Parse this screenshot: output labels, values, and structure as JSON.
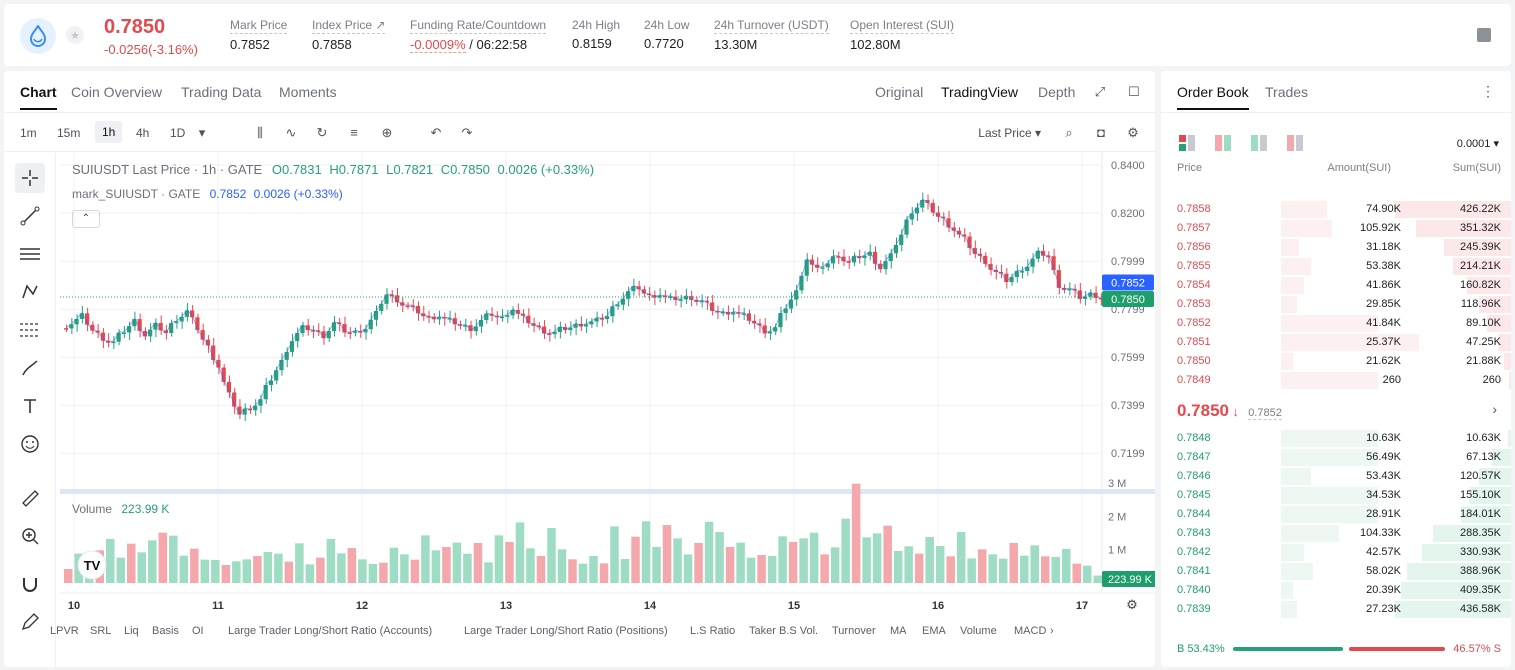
{
  "header": {
    "last_price": "0.7850",
    "change": "-0.0256(-3.16%)",
    "stats": [
      {
        "label": "Mark Price",
        "value": "0.7852"
      },
      {
        "label": "Index Price ↗",
        "value": "0.7858"
      },
      {
        "label": "Funding Rate/Countdown",
        "value": "-0.0009%",
        "value2": "/ 06:22:58"
      },
      {
        "label": "24h High",
        "value": "0.8159"
      },
      {
        "label": "24h Low",
        "value": "0.7720"
      },
      {
        "label": "24h Turnover (USDT)",
        "value": "13.30M"
      },
      {
        "label": "Open Interest (SUI)",
        "value": "102.80M"
      }
    ]
  },
  "chart_tabs": [
    "Chart",
    "Coin Overview",
    "Trading Data",
    "Moments"
  ],
  "view_tabs": [
    "Original",
    "TradingView",
    "Depth"
  ],
  "intervals": [
    "1m",
    "15m",
    "1h",
    "4h",
    "1D"
  ],
  "price_type": "Last Price ▾",
  "legend": {
    "symbol": "SUIUSDT Last Price · 1h · GATE",
    "o": "O0.7831",
    "h": "H0.7871",
    "l": "L0.7821",
    "c": "C0.7850",
    "chg": "0.0026 (+0.33%)",
    "mark_name": "mark_SUIUSDT · GATE",
    "mark_val": "0.7852",
    "mark_chg": "0.0026 (+0.33%)"
  },
  "volume_label": "Volume",
  "volume_value": "223.99 K",
  "colors": {
    "up": "#26a17b",
    "down": "#e5484d",
    "mark": "#2962ff"
  },
  "chart_data": {
    "type": "candlestick",
    "y_ticks": [
      "0.8400",
      "0.8200",
      "0.7999",
      "0.7799",
      "0.7599",
      "0.7399",
      "0.7199"
    ],
    "y_tick_values": [
      0.84,
      0.82,
      0.7999,
      0.7799,
      0.7599,
      0.7399,
      0.7199
    ],
    "x_ticks": [
      "10",
      "11",
      "12",
      "13",
      "14",
      "15",
      "16",
      "17"
    ],
    "volume_ticks": [
      "3 M",
      "2 M",
      "1 M"
    ],
    "price_tags": {
      "mark": "0.7852",
      "last": "0.7850",
      "volume": "223.99 K"
    },
    "close_path": [
      0.774,
      0.777,
      0.771,
      0.768,
      0.766,
      0.771,
      0.775,
      0.769,
      0.773,
      0.77,
      0.776,
      0.779,
      0.772,
      0.764,
      0.756,
      0.744,
      0.736,
      0.739,
      0.742,
      0.751,
      0.758,
      0.767,
      0.772,
      0.771,
      0.769,
      0.774,
      0.771,
      0.77,
      0.772,
      0.778,
      0.786,
      0.784,
      0.781,
      0.779,
      0.776,
      0.777,
      0.775,
      0.773,
      0.772,
      0.775,
      0.778,
      0.776,
      0.78,
      0.776,
      0.773,
      0.771,
      0.77,
      0.772,
      0.773,
      0.774,
      0.775,
      0.777,
      0.783,
      0.787,
      0.789,
      0.785,
      0.786,
      0.784,
      0.784,
      0.785,
      0.783,
      0.78,
      0.778,
      0.779,
      0.777,
      0.774,
      0.771,
      0.772,
      0.781,
      0.787,
      0.801,
      0.796,
      0.799,
      0.803,
      0.799,
      0.802,
      0.803,
      0.797,
      0.802,
      0.811,
      0.821,
      0.825,
      0.821,
      0.817,
      0.813,
      0.809,
      0.803,
      0.8,
      0.795,
      0.792,
      0.795,
      0.798,
      0.803,
      0.802,
      0.79,
      0.788,
      0.785,
      0.786,
      0.785
    ],
    "volume_k": [
      420,
      880,
      610,
      980,
      1320,
      760,
      1180,
      920,
      1280,
      1510,
      1420,
      820,
      1030,
      700,
      690,
      540,
      650,
      710,
      810,
      930,
      880,
      640,
      1190,
      560,
      760,
      1320,
      890,
      1050,
      710,
      570,
      610,
      1060,
      860,
      700,
      1430,
      980,
      1080,
      1210,
      880,
      1200,
      620,
      1430,
      1230,
      1820,
      1040,
      810,
      1650,
      1010,
      710,
      580,
      810,
      590,
      1700,
      720,
      1390,
      1850,
      1080,
      1740,
      1340,
      860,
      1200,
      1840,
      1530,
      1080,
      1210,
      760,
      840,
      810,
      1400,
      1230,
      1340,
      1510,
      860,
      1070,
      1930,
      2980,
      1370,
      1490,
      1720,
      960,
      1100,
      880,
      1380,
      1110,
      800,
      1530,
      740,
      1010,
      860,
      730,
      1200,
      820,
      1130,
      800,
      780,
      1020,
      580,
      520,
      224
    ]
  },
  "left_tools": [
    "crosshair-icon",
    "trendline-icon",
    "hlines-icon",
    "pattern-icon",
    "fib-icon",
    "brush-icon",
    "text-icon",
    "emoji-icon",
    "ruler-icon",
    "zoom-icon",
    "magnet-icon",
    "pencil-icon"
  ],
  "bottom_items": [
    "LPVR",
    "SRL",
    "Liq",
    "Basis",
    "OI",
    "Large Trader Long/Short Ratio (Accounts)",
    "Large Trader Long/Short Ratio (Positions)",
    "L.S Ratio",
    "Taker B.S Vol.",
    "Turnover",
    "MA",
    "EMA",
    "Volume",
    "MACD"
  ],
  "orderbook": {
    "tabs": [
      "Order Book",
      "Trades"
    ],
    "precision": "0.0001",
    "headers": [
      "Price",
      "Amount(SUI)",
      "Sum(SUI)"
    ],
    "asks": [
      {
        "price": "0.7858",
        "amount": "74.90K",
        "sum": "426.22K",
        "depth": 1.0,
        "amt": 0.2
      },
      {
        "price": "0.7857",
        "amount": "105.92K",
        "sum": "351.32K",
        "depth": 0.82,
        "amt": 0.22
      },
      {
        "price": "0.7856",
        "amount": "31.18K",
        "sum": "245.39K",
        "depth": 0.58,
        "amt": 0.08
      },
      {
        "price": "0.7855",
        "amount": "53.38K",
        "sum": "214.21K",
        "depth": 0.5,
        "amt": 0.13
      },
      {
        "price": "0.7854",
        "amount": "41.86K",
        "sum": "160.82K",
        "depth": 0.38,
        "amt": 0.1
      },
      {
        "price": "0.7853",
        "amount": "29.85K",
        "sum": "118.96K",
        "depth": 0.28,
        "amt": 0.07
      },
      {
        "price": "0.7852",
        "amount": "41.84K",
        "sum": "89.10K",
        "depth": 0.21,
        "amt": 0.42
      },
      {
        "price": "0.7851",
        "amount": "25.37K",
        "sum": "47.25K",
        "depth": 0.11,
        "amt": 0.6
      },
      {
        "price": "0.7850",
        "amount": "21.62K",
        "sum": "21.88K",
        "depth": 0.06,
        "amt": 0.05
      },
      {
        "price": "0.7849",
        "amount": "260",
        "sum": "260",
        "depth": 0.02,
        "amt": 0.42
      }
    ],
    "mid_price": "0.7850",
    "mid_mark": "0.7852",
    "bids": [
      {
        "price": "0.7848",
        "amount": "10.63K",
        "sum": "10.63K",
        "depth": 0.03,
        "amt": 0.42
      },
      {
        "price": "0.7847",
        "amount": "56.49K",
        "sum": "67.13K",
        "depth": 0.16,
        "amt": 0.42
      },
      {
        "price": "0.7846",
        "amount": "53.43K",
        "sum": "120.57K",
        "depth": 0.28,
        "amt": 0.13
      },
      {
        "price": "0.7845",
        "amount": "34.53K",
        "sum": "155.10K",
        "depth": 0.36,
        "amt": 0.42
      },
      {
        "price": "0.7844",
        "amount": "28.91K",
        "sum": "184.01K",
        "depth": 0.43,
        "amt": 0.42
      },
      {
        "price": "0.7843",
        "amount": "104.33K",
        "sum": "288.35K",
        "depth": 0.67,
        "amt": 0.25
      },
      {
        "price": "0.7842",
        "amount": "42.57K",
        "sum": "330.93K",
        "depth": 0.77,
        "amt": 0.1
      },
      {
        "price": "0.7841",
        "amount": "58.02K",
        "sum": "388.96K",
        "depth": 0.9,
        "amt": 0.14
      },
      {
        "price": "0.7840",
        "amount": "20.39K",
        "sum": "409.35K",
        "depth": 0.95,
        "amt": 0.05
      },
      {
        "price": "0.7839",
        "amount": "27.23K",
        "sum": "436.58K",
        "depth": 1.0,
        "amt": 0.07
      }
    ],
    "buy_ratio": "B 53.43%",
    "sell_ratio": "46.57% S",
    "buy_fraction": 0.5343
  }
}
